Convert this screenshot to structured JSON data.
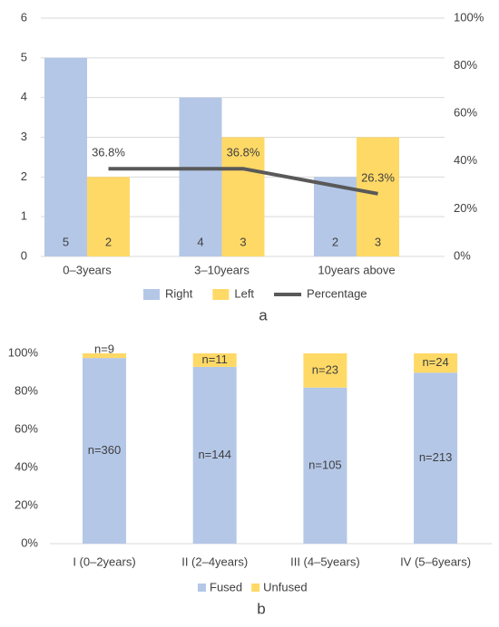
{
  "chart_data": [
    {
      "type": "bar_line",
      "categories": [
        "0–3years",
        "3–10years",
        "10years above"
      ],
      "series": [
        {
          "name": "Right",
          "color": "#b4c7e7",
          "values": [
            5,
            4,
            2
          ]
        },
        {
          "name": "Left",
          "color": "#ffd966",
          "values": [
            2,
            3,
            3
          ]
        },
        {
          "name": "Percentage",
          "color": "#595959",
          "axis": "y2",
          "values": [
            36.8,
            36.8,
            26.3
          ],
          "value_labels": [
            "36.8%",
            "36.8%",
            "26.3%"
          ]
        }
      ],
      "ylim": [
        0,
        6
      ],
      "yticks": [
        0,
        1,
        2,
        3,
        4,
        5,
        6
      ],
      "y2lim": [
        0,
        100
      ],
      "y2ticks": [
        {
          "value": 0,
          "label": "0%"
        },
        {
          "value": 20,
          "label": "20%"
        },
        {
          "value": 40,
          "label": "40%"
        },
        {
          "value": 60,
          "label": "60%"
        },
        {
          "value": 80,
          "label": "80%"
        },
        {
          "value": 100,
          "label": "100%"
        }
      ],
      "grid": true,
      "legend": "bottom",
      "caption": "a"
    },
    {
      "type": "stacked_bar_100",
      "categories": [
        "I (0–2years)",
        "II (2–4years)",
        "III (4–5years)",
        "IV (5–6years)"
      ],
      "series": [
        {
          "name": "Fused",
          "color": "#b4c7e7",
          "values": [
            360,
            144,
            105,
            213
          ],
          "value_labels": [
            "n=360",
            "n=144",
            "n=105",
            "n=213"
          ]
        },
        {
          "name": "Unfused",
          "color": "#ffd966",
          "values": [
            9,
            11,
            23,
            24
          ],
          "value_labels": [
            "n=9",
            "n=11",
            "n=23",
            "n=24"
          ]
        }
      ],
      "ylim": [
        0,
        100
      ],
      "yticks": [
        {
          "value": 0,
          "label": "0%"
        },
        {
          "value": 20,
          "label": "20%"
        },
        {
          "value": 40,
          "label": "40%"
        },
        {
          "value": 60,
          "label": "60%"
        },
        {
          "value": 80,
          "label": "80%"
        },
        {
          "value": 100,
          "label": "100%"
        }
      ],
      "grid": false,
      "legend": "bottom",
      "caption": "b"
    }
  ]
}
